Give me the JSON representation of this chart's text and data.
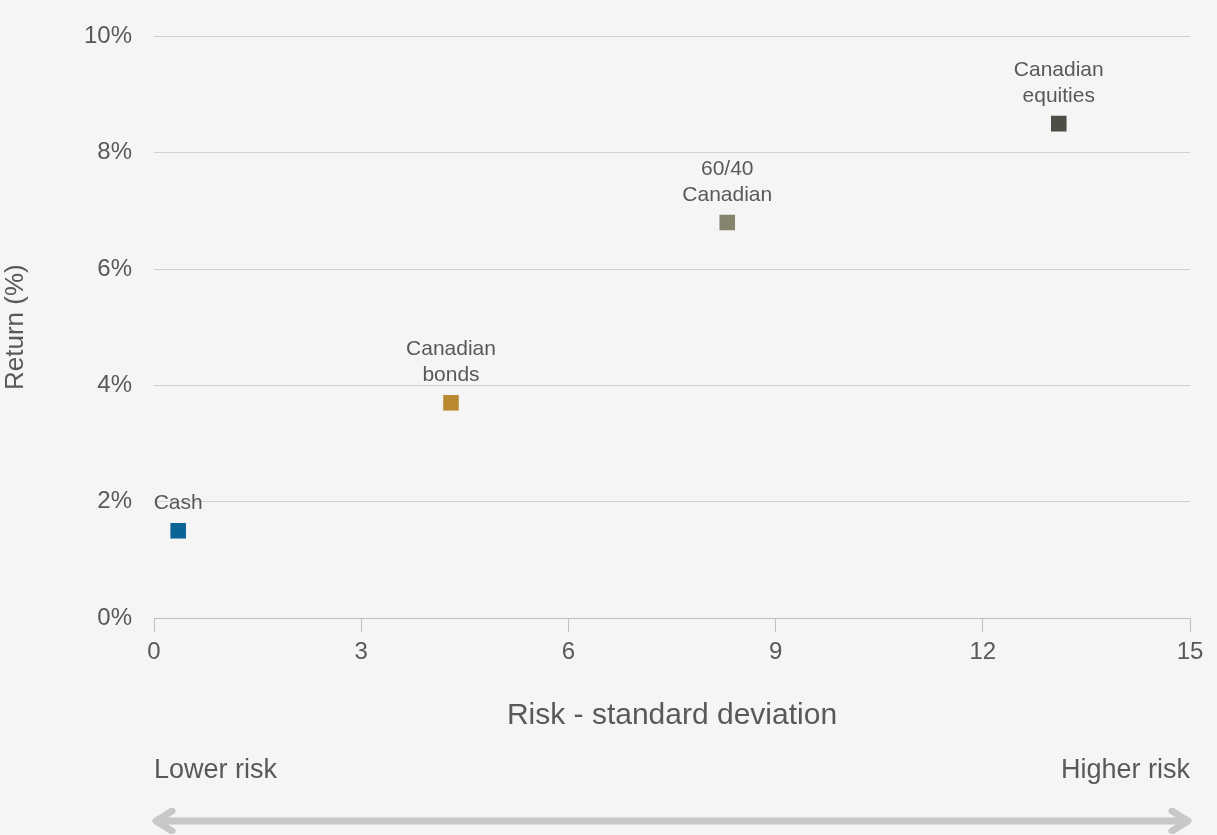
{
  "chart_data": {
    "type": "scatter",
    "xlabel": "Risk - standard deviation",
    "ylabel": "Return (%)",
    "series": [
      {
        "name": "Cash",
        "color": "#0a6496",
        "x": [
          0.35
        ],
        "values": [
          1.5
        ]
      },
      {
        "name": "Canadian bonds",
        "color": "#b8892f",
        "x": [
          4.3
        ],
        "values": [
          3.7
        ]
      },
      {
        "name": "60/40 Canadian",
        "color": "#85826e",
        "x": [
          8.3
        ],
        "values": [
          6.8
        ]
      },
      {
        "name": "Canadian equities",
        "color": "#4d4f46",
        "x": [
          13.1
        ],
        "values": [
          8.5
        ]
      }
    ],
    "xlim": [
      0,
      15
    ],
    "xticks": [
      0,
      3,
      6,
      9,
      12,
      15
    ],
    "ylim": [
      0,
      10
    ],
    "yticks": [
      {
        "value": 0,
        "label": "0%"
      },
      {
        "value": 2,
        "label": "2%"
      },
      {
        "value": 4,
        "label": "4%"
      },
      {
        "value": 6,
        "label": "6%"
      },
      {
        "value": 8,
        "label": "8%"
      },
      {
        "value": 10,
        "label": "10%"
      }
    ],
    "grid": "y",
    "marker": "square",
    "annotations": [
      "Lower risk",
      "Higher risk"
    ]
  }
}
